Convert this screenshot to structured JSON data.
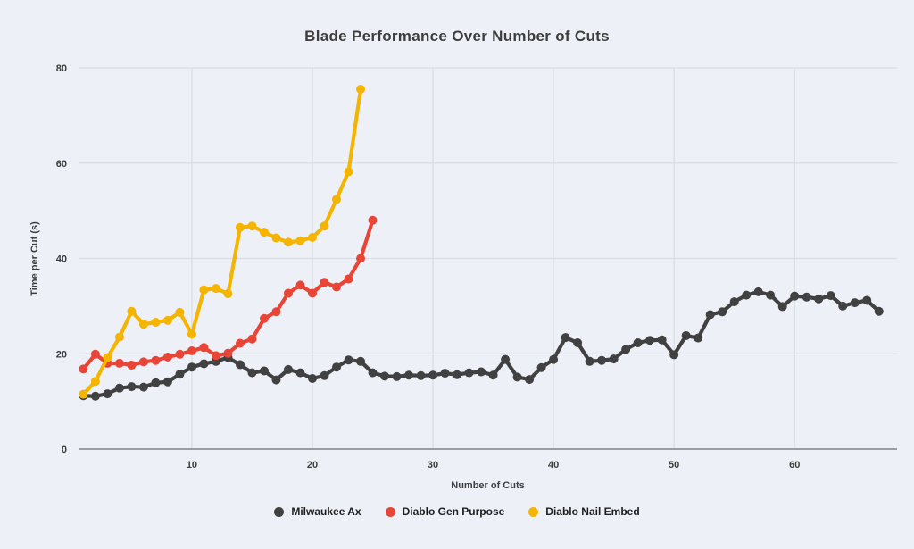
{
  "page": {
    "background": "#edf1f7"
  },
  "chart_data": {
    "type": "line",
    "title": "Blade Performance Over Number of Cuts",
    "xlabel": "Number of Cuts",
    "ylabel": "Time per Cut (s)",
    "x_start": 1,
    "xlim": [
      0.6,
      68.5
    ],
    "ylim": [
      0,
      80
    ],
    "xticks": [
      10,
      20,
      30,
      40,
      50,
      60
    ],
    "yticks": [
      0,
      20,
      40,
      60,
      80
    ],
    "grid": true,
    "legend_position": "bottom",
    "marker": "circle",
    "colors": {
      "background": "#edf1f7",
      "gridline": "#d9dde4",
      "axis_line": "#989ea6",
      "text": "#3d3d3d"
    },
    "series": [
      {
        "name": "Milwaukee Ax",
        "color": "#414141",
        "values": [
          11.2,
          11.1,
          11.6,
          12.8,
          13.1,
          13.0,
          13.9,
          14.1,
          15.7,
          17.2,
          17.9,
          18.4,
          19.2,
          17.7,
          16.0,
          16.4,
          14.5,
          16.7,
          16.0,
          14.8,
          15.4,
          17.2,
          18.7,
          18.4,
          16.0,
          15.3,
          15.2,
          15.5,
          15.4,
          15.5,
          15.9,
          15.6,
          16.0,
          16.2,
          15.5,
          18.8,
          15.1,
          14.6,
          17.1,
          18.8,
          23.4,
          22.3,
          18.4,
          18.6,
          18.9,
          20.9,
          22.3,
          22.8,
          22.9,
          19.8,
          23.8,
          23.3,
          28.2,
          28.8,
          30.9,
          32.3,
          33.0,
          32.3,
          29.9,
          32.1,
          31.9,
          31.5,
          32.2,
          30.0,
          30.7,
          31.2,
          28.9
        ]
      },
      {
        "name": "Diablo Gen Purpose",
        "color": "#e94537",
        "values": [
          16.8,
          19.9,
          18.0,
          18.0,
          17.6,
          18.3,
          18.6,
          19.3,
          19.9,
          20.6,
          21.3,
          19.6,
          20.1,
          22.2,
          23.1,
          27.4,
          28.8,
          32.7,
          34.4,
          32.7,
          35.0,
          34.0,
          35.7,
          40.0,
          48.0
        ]
      },
      {
        "name": "Diablo Nail Embed",
        "color": "#f5b400",
        "values": [
          11.5,
          14.2,
          19.2,
          23.5,
          28.9,
          26.2,
          26.6,
          27.0,
          28.7,
          24.1,
          33.4,
          33.7,
          32.6,
          46.5,
          46.8,
          45.5,
          44.3,
          43.4,
          43.7,
          44.4,
          46.8,
          52.4,
          58.2,
          75.5
        ]
      }
    ]
  }
}
